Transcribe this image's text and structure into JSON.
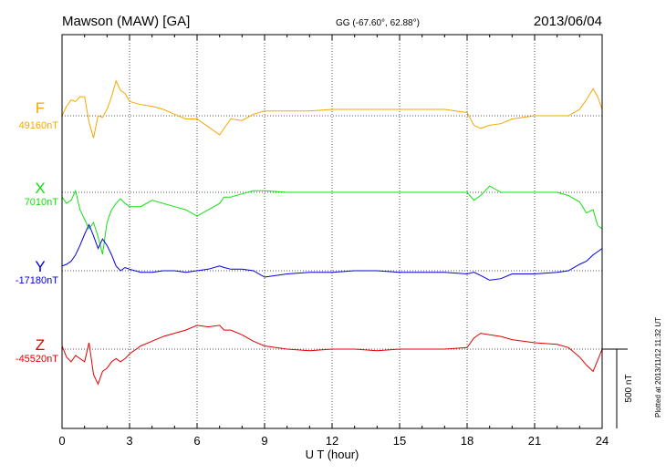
{
  "header": {
    "station": "Mawson (MAW)  [GA]",
    "coords": "GG (-67.60°,  62.88°)",
    "date": "2013/06/04"
  },
  "footer": {
    "plotted": "Plotted at 2013/11/12 11:32 UT"
  },
  "scale_bar": {
    "label": "500 nT",
    "value_nT": 500
  },
  "colors": {
    "F": "#f5a800",
    "X": "#10e010",
    "Y": "#0000e0",
    "Z": "#e00000",
    "axis": "#000000",
    "grid": "#555555"
  },
  "chart_data": {
    "type": "line",
    "xlabel": "U T (hour)",
    "xlim": [
      0,
      24
    ],
    "xticks": [
      "0",
      "3",
      "6",
      "9",
      "12",
      "15",
      "18",
      "21",
      "24"
    ],
    "grid": true,
    "series": [
      {
        "name": "F",
        "baseline_label": "49160nT",
        "baseline_nT": 49160,
        "x": [
          0,
          0.2,
          0.4,
          0.6,
          0.8,
          1,
          1.2,
          1.4,
          1.6,
          1.8,
          2,
          2.2,
          2.4,
          2.6,
          2.8,
          3,
          3.5,
          4,
          4.5,
          5,
          5.5,
          6,
          6.5,
          7,
          7.2,
          7.5,
          8,
          8.5,
          9,
          10,
          11,
          12,
          13,
          14,
          15,
          16,
          17,
          18,
          18.3,
          18.6,
          19,
          19.5,
          20,
          21,
          22,
          22.5,
          23,
          23.3,
          23.6,
          23.8,
          24
        ],
        "values": [
          49160,
          49220,
          49260,
          49250,
          49280,
          49280,
          49120,
          49020,
          49160,
          49150,
          49200,
          49280,
          49380,
          49320,
          49300,
          49250,
          49230,
          49220,
          49200,
          49170,
          49140,
          49140,
          49090,
          49040,
          49080,
          49140,
          49130,
          49170,
          49190,
          49190,
          49190,
          49200,
          49200,
          49200,
          49200,
          49200,
          49200,
          49180,
          49100,
          49080,
          49100,
          49110,
          49140,
          49160,
          49160,
          49160,
          49200,
          49260,
          49330,
          49280,
          49200
        ]
      },
      {
        "name": "X",
        "baseline_label": "7010nT",
        "baseline_nT": 7010,
        "x": [
          0,
          0.2,
          0.4,
          0.6,
          0.8,
          1,
          1.2,
          1.4,
          1.6,
          1.8,
          2,
          2.2,
          2.4,
          2.6,
          2.8,
          3,
          3.5,
          4,
          4.5,
          5,
          5.5,
          6,
          6.5,
          7,
          7.2,
          7.5,
          8,
          8.5,
          9,
          10,
          11,
          12,
          13,
          14,
          15,
          16,
          17,
          18,
          18.3,
          18.6,
          19,
          19.5,
          20,
          21,
          22,
          22.5,
          23,
          23.3,
          23.6,
          23.8,
          24
        ],
        "values": [
          6980,
          6940,
          6960,
          7020,
          6900,
          6840,
          6780,
          6820,
          6730,
          6620,
          6820,
          6900,
          6940,
          6970,
          6940,
          6920,
          6920,
          6960,
          6940,
          6920,
          6900,
          6860,
          6900,
          6940,
          6980,
          6980,
          7000,
          7020,
          7020,
          7010,
          7010,
          7010,
          7010,
          7010,
          7010,
          7010,
          7010,
          7010,
          6960,
          6990,
          7050,
          7010,
          7010,
          7010,
          7010,
          6990,
          6950,
          6880,
          6900,
          6800,
          6780
        ]
      },
      {
        "name": "Y",
        "baseline_label": "-17180nT",
        "baseline_nT": -17180,
        "x": [
          0,
          0.2,
          0.4,
          0.6,
          0.8,
          1,
          1.2,
          1.4,
          1.6,
          1.8,
          2,
          2.2,
          2.4,
          2.6,
          2.8,
          3,
          3.5,
          4,
          4.5,
          5,
          5.5,
          6,
          6.5,
          7,
          7.2,
          7.5,
          8,
          8.5,
          9,
          10,
          11,
          12,
          13,
          14,
          15,
          16,
          17,
          18,
          18.3,
          18.6,
          19,
          19.5,
          20,
          21,
          22,
          22.5,
          23,
          23.3,
          23.6,
          23.8,
          24
        ],
        "values": [
          -17150,
          -17140,
          -17120,
          -17080,
          -17020,
          -16950,
          -16890,
          -16960,
          -17040,
          -16980,
          -17020,
          -17080,
          -17150,
          -17180,
          -17160,
          -17170,
          -17190,
          -17190,
          -17180,
          -17180,
          -17190,
          -17180,
          -17170,
          -17150,
          -17160,
          -17170,
          -17170,
          -17180,
          -17220,
          -17200,
          -17190,
          -17190,
          -17180,
          -17180,
          -17190,
          -17190,
          -17190,
          -17200,
          -17190,
          -17210,
          -17240,
          -17230,
          -17200,
          -17200,
          -17190,
          -17180,
          -17140,
          -17120,
          -17080,
          -17060,
          -17040
        ]
      },
      {
        "name": "Z",
        "baseline_label": "-45520nT",
        "baseline_nT": -45520,
        "x": [
          0,
          0.2,
          0.4,
          0.6,
          0.8,
          1,
          1.2,
          1.4,
          1.6,
          1.8,
          2,
          2.2,
          2.4,
          2.6,
          2.8,
          3,
          3.5,
          4,
          4.5,
          5,
          5.5,
          6,
          6.5,
          7,
          7.2,
          7.5,
          8,
          8.5,
          9,
          10,
          11,
          12,
          13,
          14,
          15,
          16,
          17,
          18,
          18.3,
          18.6,
          19,
          19.5,
          20,
          21,
          22,
          22.5,
          23,
          23.3,
          23.6,
          23.8,
          24
        ],
        "values": [
          -45500,
          -45570,
          -45600,
          -45560,
          -45580,
          -45600,
          -45480,
          -45680,
          -45740,
          -45660,
          -45640,
          -45600,
          -45580,
          -45600,
          -45580,
          -45550,
          -45500,
          -45470,
          -45440,
          -45420,
          -45400,
          -45370,
          -45380,
          -45370,
          -45400,
          -45400,
          -45430,
          -45470,
          -45500,
          -45520,
          -45530,
          -45520,
          -45520,
          -45530,
          -45520,
          -45520,
          -45520,
          -45510,
          -45450,
          -45420,
          -45430,
          -45440,
          -45460,
          -45480,
          -45490,
          -45510,
          -45570,
          -45620,
          -45660,
          -45590,
          -45520
        ]
      }
    ]
  }
}
